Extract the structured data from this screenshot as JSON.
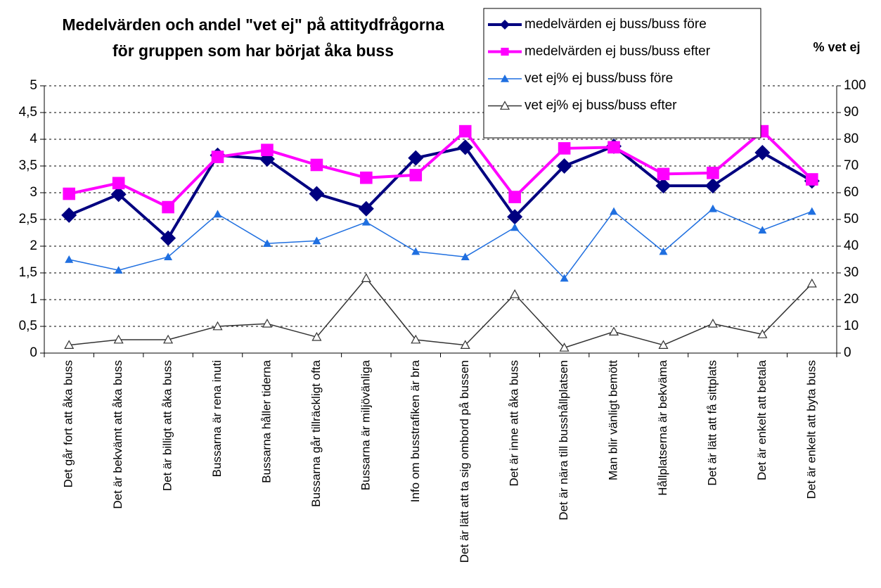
{
  "chart_data": {
    "type": "line",
    "title": [
      "Medelvärden och andel \"vet ej\" på attitydfrågorna",
      "för gruppen som har börjat åka buss"
    ],
    "y2_label": "% vet ej",
    "categories": [
      "Det går fort att åka buss",
      "Det är bekvämt att åka buss",
      "Det är billigt att åka buss",
      "Bussarna är rena inuti",
      "Bussarna håller tiderna",
      "Bussarna går tillräckligt ofta",
      "Bussarna är miljövänliga",
      "Info om busstrafiken är bra",
      "Det är lätt att ta sig ombord på bussen",
      "Det är inne att åka buss",
      "Det är nära till busshållplatsen",
      "Man blir vänligt bemött",
      "Hållplatserna är bekväma",
      "Det är lätt att få sittplats",
      "Det är enkelt att betala",
      "Det är enkelt att byta buss"
    ],
    "series": [
      {
        "name": "medelvärden ej buss/buss före",
        "color": "#000080",
        "marker": "diamond",
        "values": [
          2.58,
          2.97,
          2.15,
          3.7,
          3.63,
          2.98,
          2.7,
          3.65,
          3.85,
          2.55,
          3.5,
          3.87,
          3.13,
          3.13,
          3.75,
          3.22
        ]
      },
      {
        "name": "medelvärden ej buss/buss efter",
        "color": "#ff00ff",
        "marker": "square",
        "values": [
          2.98,
          3.18,
          2.73,
          3.67,
          3.8,
          3.52,
          3.28,
          3.33,
          4.15,
          2.92,
          3.83,
          3.85,
          3.35,
          3.37,
          4.15,
          3.25
        ]
      },
      {
        "name": "vet ej% ej buss/buss före",
        "color": "#1f6fe0",
        "marker": "triangle",
        "axis": "y2",
        "values": [
          35,
          31,
          36,
          52,
          41,
          42,
          49,
          38,
          36,
          47,
          28,
          53,
          38,
          54,
          46,
          53
        ]
      },
      {
        "name": "vet ej% ej buss/buss efter",
        "color": "#333333",
        "marker": "open-triangle",
        "axis": "y2",
        "values": [
          3,
          5,
          5,
          10,
          11,
          6,
          28,
          5,
          3,
          22,
          2,
          8,
          3,
          11,
          7,
          26
        ]
      }
    ],
    "ylim": [
      0,
      5
    ],
    "yticks": [
      0,
      {
        "value": 0.5,
        "label": "0,5"
      },
      1,
      {
        "value": 1.5,
        "label": "1,5"
      },
      2,
      {
        "value": 2.5,
        "label": "2,5"
      },
      3,
      {
        "value": 3.5,
        "label": "3,5"
      },
      4,
      {
        "value": 4.5,
        "label": "4,5"
      },
      5
    ],
    "y2lim": [
      0,
      100
    ],
    "y2ticks": [
      0,
      10,
      20,
      30,
      40,
      50,
      60,
      70,
      80,
      90,
      100
    ],
    "grid": true
  }
}
